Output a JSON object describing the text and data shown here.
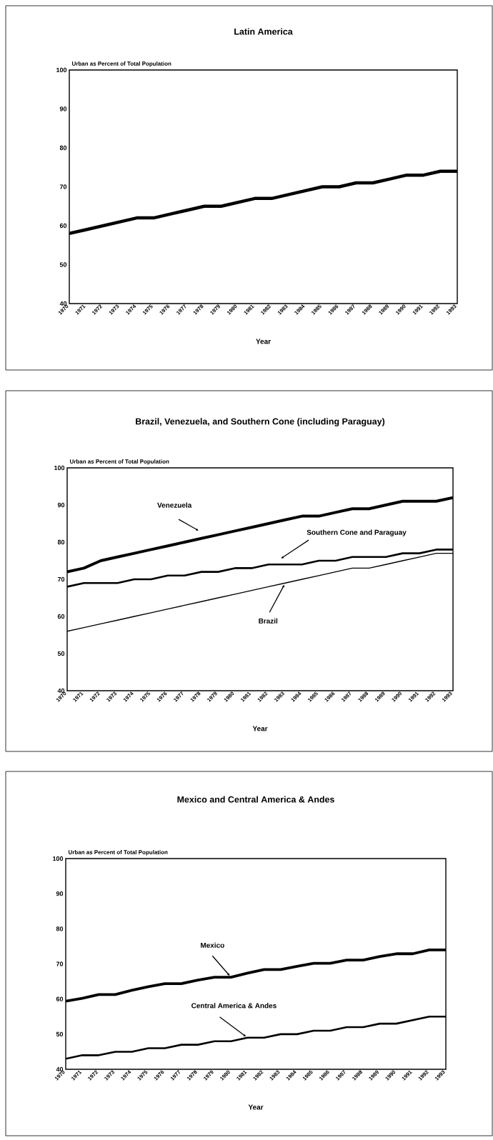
{
  "chart_data": [
    {
      "type": "line",
      "title": "Latin America",
      "ylabel": "Urban as Percent of Total Population",
      "xlabel": "Year",
      "categories": [
        "1970",
        "1971",
        "1972",
        "1973",
        "1974",
        "1975",
        "1976",
        "1977",
        "1978",
        "1979",
        "1980",
        "1981",
        "1982",
        "1983",
        "1984",
        "1985",
        "1986",
        "1987",
        "1988",
        "1989",
        "1990",
        "1991",
        "1992",
        "1993"
      ],
      "series": [
        {
          "color": "#000000",
          "values": [
            58,
            59,
            60,
            61,
            62,
            62,
            63,
            64,
            65,
            65,
            66,
            67,
            67,
            68,
            69,
            70,
            70,
            71,
            71,
            72,
            73,
            73,
            74,
            74
          ]
        }
      ],
      "ylim": [
        40,
        100
      ],
      "yticks": [
        40,
        50,
        60,
        70,
        80,
        90,
        100
      ]
    },
    {
      "type": "line",
      "title": "Brazil, Venezuela, and Southern Cone (including Paraguay)",
      "ylabel": "Urban as Percent of Total Population",
      "xlabel": "Year",
      "categories": [
        "1970",
        "1971",
        "1972",
        "1973",
        "1974",
        "1975",
        "1976",
        "1977",
        "1978",
        "1979",
        "1980",
        "1981",
        "1982",
        "1983",
        "1984",
        "1985",
        "1986",
        "1987",
        "1988",
        "1989",
        "1990",
        "1991",
        "1992",
        "1993"
      ],
      "series": [
        {
          "color": "#000000",
          "values": [
            72,
            73,
            75,
            76,
            77,
            78,
            79,
            80,
            81,
            82,
            83,
            84,
            85,
            86,
            87,
            87,
            88,
            89,
            89,
            90,
            91,
            91,
            91,
            92
          ]
        },
        {
          "color": "#000000",
          "values": [
            68,
            69,
            69,
            69,
            70,
            70,
            71,
            71,
            72,
            72,
            73,
            73,
            74,
            74,
            74,
            75,
            75,
            76,
            76,
            76,
            77,
            77,
            78,
            78
          ]
        },
        {
          "color": "#000000",
          "values": [
            56,
            57,
            58,
            59,
            60,
            61,
            62,
            63,
            64,
            65,
            66,
            67,
            68,
            69,
            70,
            71,
            72,
            73,
            73,
            74,
            75,
            76,
            77,
            77
          ]
        }
      ],
      "annotations": [
        "Venezuela",
        "Southern Cone and Paraguay",
        {
          "text": "Brazil",
          "x": "1983",
          "y": 69
        }
      ],
      "ylim": [
        40,
        100
      ],
      "yticks": [
        40,
        50,
        60,
        70,
        80,
        90,
        100
      ]
    },
    {
      "type": "line",
      "title": "Mexico and Central America & Andes",
      "ylabel": "Urban as Percent of Total Population",
      "xlabel": "Year",
      "categories": [
        "1970",
        "1971",
        "1972",
        "1973",
        "1974",
        "1975",
        "1976",
        "1977",
        "1978",
        "1979",
        "1980",
        "1981",
        "1982",
        "1983",
        "1984",
        "1985",
        "1986",
        "1987",
        "1988",
        "1989",
        "1990",
        "1991",
        "1992",
        "1993"
      ],
      "series": [
        {
          "color": "#000000",
          "values": [
            59.4,
            60.2,
            61.3,
            61.3,
            62.5,
            63.5,
            64.4,
            64.4,
            65.4,
            66.2,
            66.2,
            67.4,
            68.4,
            68.4,
            69.3,
            70.2,
            70.2,
            71.1,
            71.1,
            72.1,
            72.9,
            72.9,
            74,
            74
          ]
        },
        {
          "color": "#000000",
          "values": [
            43,
            44,
            44,
            45,
            45,
            46,
            46,
            47,
            47,
            48,
            48,
            49,
            49,
            50,
            50,
            51,
            51,
            52,
            52,
            53,
            53,
            54,
            55,
            55
          ]
        }
      ],
      "annotations": [
        {
          "text": "Mexico",
          "x": "1980",
          "y": 66.2
        },
        {
          "text": "Central America & Andes",
          "x": "1981",
          "y": 49
        }
      ],
      "ylim": [
        40,
        100
      ],
      "yticks": [
        40,
        50,
        60,
        70,
        80,
        90,
        100
      ]
    }
  ]
}
